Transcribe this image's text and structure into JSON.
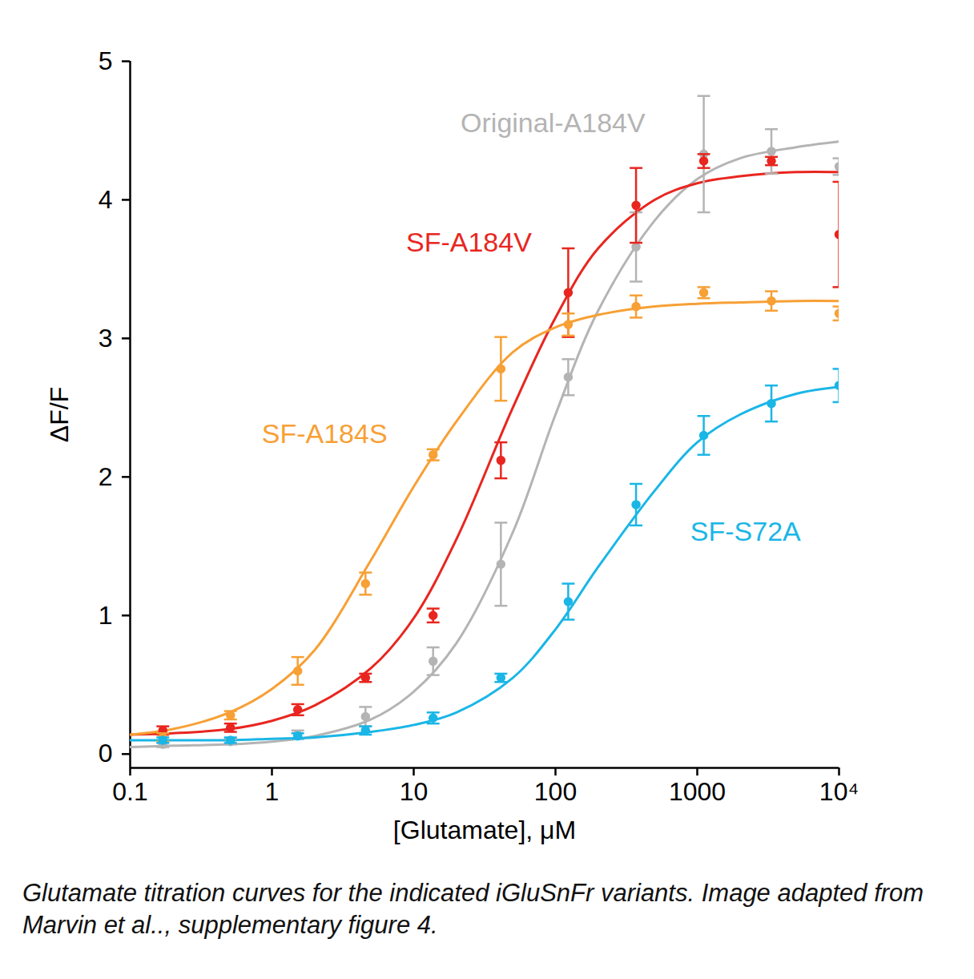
{
  "chart_data": {
    "type": "line",
    "marker": "circle",
    "caption": "Glutamate titration curves for the indicated iGluSnFr variants. Image adapted from Marvin et al.., supplementary figure 4.",
    "x_label": "[Glutamate], μM",
    "y_label": "ΔF/F",
    "log": "x",
    "grid": false,
    "xlim": [
      0.1,
      10000
    ],
    "xticks": [
      0.1,
      1,
      10,
      100,
      1000,
      {
        "value": 10000,
        "label": "10⁴"
      }
    ],
    "ylim": [
      -0.1,
      5
    ],
    "yticks": [
      0,
      1,
      2,
      3,
      4,
      5
    ],
    "x": [
      0.17,
      0.51,
      1.52,
      4.57,
      13.7,
      41.2,
      123,
      370,
      1111,
      3333,
      10000
    ],
    "curve_x": [
      0.1,
      0.2,
      0.5,
      1,
      2,
      5,
      10,
      20,
      50,
      100,
      200,
      500,
      1000,
      2000,
      5000,
      10000
    ],
    "series": [
      {
        "name": "Original-A184V",
        "color": "#b4b4b4",
        "label_x": 96,
        "label_y": 4.55,
        "values": [
          0.07,
          0.09,
          0.14,
          0.27,
          0.67,
          1.37,
          2.72,
          3.66,
          4.33,
          4.35,
          4.24
        ],
        "errors": [
          0.02,
          0.02,
          0.03,
          0.07,
          0.1,
          0.3,
          0.13,
          0.25,
          0.42,
          0.16,
          0.06
        ],
        "curve_values": [
          0.05,
          0.06,
          0.07,
          0.09,
          0.13,
          0.25,
          0.45,
          0.8,
          1.6,
          2.45,
          3.2,
          3.85,
          4.15,
          4.3,
          4.38,
          4.42
        ]
      },
      {
        "name": "SF-A184V",
        "color": "#e8261f",
        "label_x": 24.5,
        "label_y": 3.69,
        "values": [
          0.17,
          0.19,
          0.32,
          0.55,
          1.0,
          2.12,
          3.33,
          3.96,
          4.28,
          4.28,
          3.75
        ],
        "errors": [
          0.03,
          0.03,
          0.04,
          0.03,
          0.05,
          0.13,
          0.32,
          0.27,
          0.05,
          0.03,
          0.38
        ],
        "curve_values": [
          0.14,
          0.15,
          0.18,
          0.24,
          0.35,
          0.62,
          0.98,
          1.55,
          2.5,
          3.15,
          3.65,
          4.0,
          4.12,
          4.17,
          4.2,
          4.2
        ]
      },
      {
        "name": "SF-A184S",
        "color": "#f7a035",
        "label_x": 2.35,
        "label_y": 2.31,
        "values": [
          0.12,
          0.28,
          0.6,
          1.23,
          2.16,
          2.78,
          3.1,
          3.23,
          3.33,
          3.27,
          3.18
        ],
        "errors": [
          0.03,
          0.03,
          0.1,
          0.08,
          0.04,
          0.23,
          0.08,
          0.08,
          0.04,
          0.07,
          0.05
        ],
        "curve_values": [
          0.14,
          0.18,
          0.3,
          0.47,
          0.75,
          1.4,
          1.93,
          2.4,
          2.9,
          3.08,
          3.17,
          3.23,
          3.25,
          3.26,
          3.27,
          3.27
        ]
      },
      {
        "name": "SF-S72A",
        "color": "#1ab6e6",
        "label_x": 2190,
        "label_y": 1.6,
        "values": [
          0.1,
          0.1,
          0.13,
          0.17,
          0.26,
          0.55,
          1.1,
          1.8,
          2.3,
          2.53,
          2.66
        ],
        "errors": [
          0.02,
          0.02,
          0.02,
          0.03,
          0.04,
          0.03,
          0.13,
          0.15,
          0.14,
          0.13,
          0.12
        ],
        "curve_values": [
          0.1,
          0.1,
          0.1,
          0.11,
          0.12,
          0.16,
          0.21,
          0.3,
          0.55,
          0.9,
          1.35,
          1.9,
          2.25,
          2.45,
          2.6,
          2.65
        ]
      }
    ]
  }
}
